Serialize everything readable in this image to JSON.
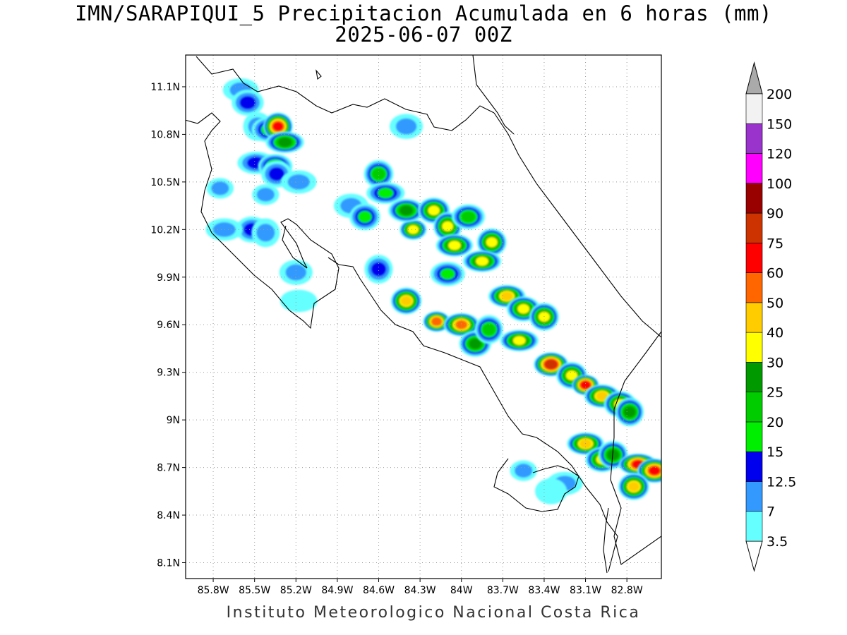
{
  "title_line1": "IMN/SARAPIQUI_5 Precipitacion Acumulada en 6 horas (mm)",
  "title_line2": "2025-06-07 00Z",
  "credit": "Instituto Meteorologico Nacional Costa Rica",
  "map": {
    "lon_min": -86.0,
    "lon_max": -82.55,
    "lat_min": 8.0,
    "lat_max": 11.3,
    "lon_ticks": [
      {
        "value": -85.8,
        "label": "85.8W"
      },
      {
        "value": -85.5,
        "label": "85.5W"
      },
      {
        "value": -85.2,
        "label": "85.2W"
      },
      {
        "value": -84.9,
        "label": "84.9W"
      },
      {
        "value": -84.6,
        "label": "84.6W"
      },
      {
        "value": -84.3,
        "label": "84.3W"
      },
      {
        "value": -84.0,
        "label": "84W"
      },
      {
        "value": -83.7,
        "label": "83.7W"
      },
      {
        "value": -83.4,
        "label": "83.4W"
      },
      {
        "value": -83.1,
        "label": "83.1W"
      },
      {
        "value": -82.8,
        "label": "82.8W"
      }
    ],
    "lat_ticks": [
      {
        "value": 11.1,
        "label": "11.1N"
      },
      {
        "value": 10.8,
        "label": "10.8N"
      },
      {
        "value": 10.5,
        "label": "10.5N"
      },
      {
        "value": 10.2,
        "label": "10.2N"
      },
      {
        "value": 9.9,
        "label": "9.9N"
      },
      {
        "value": 9.6,
        "label": "9.6N"
      },
      {
        "value": 9.3,
        "label": "9.3N"
      },
      {
        "value": 9.0,
        "label": "9N"
      },
      {
        "value": 8.7,
        "label": "8.7N"
      },
      {
        "value": 8.4,
        "label": "8.4N"
      },
      {
        "value": 8.1,
        "label": "8.1N"
      }
    ],
    "grid": true
  },
  "colorbar": {
    "levels": [
      "3.5",
      "7",
      "12.5",
      "15",
      "20",
      "25",
      "30",
      "40",
      "50",
      "60",
      "75",
      "90",
      "100",
      "120",
      "150",
      "200"
    ],
    "colors": [
      "#66ffff",
      "#3399ff",
      "#0000ee",
      "#00ee00",
      "#00cc00",
      "#009900",
      "#ffff00",
      "#ffcc00",
      "#ff6600",
      "#ff0000",
      "#cc3300",
      "#990000",
      "#ff00ff",
      "#9933cc",
      "#f2f2f2"
    ],
    "over_color": "#aaaaaa",
    "under_color": "#ffffff"
  },
  "chart_data": {
    "type": "heatmap",
    "units": "mm",
    "note_fields": "cells: [lon, lat, precipitation_mm]",
    "cells": [
      [
        -85.75,
        10.46,
        12
      ],
      [
        -85.6,
        11.08,
        7
      ],
      [
        -85.55,
        11.0,
        14
      ],
      [
        -85.48,
        10.85,
        10
      ],
      [
        -85.49,
        10.62,
        14
      ],
      [
        -85.4,
        10.83,
        18
      ],
      [
        -85.33,
        10.85,
        60
      ],
      [
        -85.28,
        10.75,
        25
      ],
      [
        -85.35,
        10.6,
        22
      ],
      [
        -85.34,
        10.55,
        14
      ],
      [
        -85.42,
        10.42,
        9
      ],
      [
        -85.18,
        10.5,
        12
      ],
      [
        -85.52,
        10.2,
        14
      ],
      [
        -85.42,
        10.18,
        12
      ],
      [
        -85.72,
        10.2,
        7
      ],
      [
        -85.2,
        9.93,
        12
      ],
      [
        -84.6,
        10.55,
        22
      ],
      [
        -84.55,
        10.43,
        15
      ],
      [
        -84.8,
        10.35,
        10
      ],
      [
        -84.7,
        10.28,
        15
      ],
      [
        -84.35,
        10.2,
        35
      ],
      [
        -84.4,
        10.32,
        25
      ],
      [
        -84.2,
        10.32,
        30
      ],
      [
        -84.1,
        10.22,
        35
      ],
      [
        -84.05,
        10.1,
        30
      ],
      [
        -83.95,
        10.28,
        22
      ],
      [
        -83.78,
        10.12,
        30
      ],
      [
        -83.85,
        10.0,
        38
      ],
      [
        -84.1,
        9.92,
        15
      ],
      [
        -84.4,
        9.75,
        42
      ],
      [
        -84.18,
        9.62,
        55
      ],
      [
        -84.0,
        9.6,
        50
      ],
      [
        -83.9,
        9.48,
        25
      ],
      [
        -83.8,
        9.57,
        20
      ],
      [
        -83.67,
        9.78,
        40
      ],
      [
        -83.55,
        9.7,
        38
      ],
      [
        -83.4,
        9.65,
        35
      ],
      [
        -83.58,
        9.5,
        30
      ],
      [
        -83.35,
        9.35,
        75
      ],
      [
        -83.2,
        9.28,
        30
      ],
      [
        -83.1,
        9.22,
        70
      ],
      [
        -82.98,
        9.15,
        40
      ],
      [
        -82.85,
        9.1,
        32
      ],
      [
        -82.78,
        9.05,
        25
      ],
      [
        -83.1,
        8.85,
        48
      ],
      [
        -82.98,
        8.75,
        35
      ],
      [
        -82.9,
        8.78,
        25
      ],
      [
        -82.72,
        8.72,
        60
      ],
      [
        -82.6,
        8.68,
        65
      ],
      [
        -82.75,
        8.58,
        40
      ],
      [
        -83.55,
        8.68,
        12
      ],
      [
        -83.25,
        8.6,
        10
      ],
      [
        -83.35,
        8.55,
        5
      ],
      [
        -84.6,
        9.95,
        14
      ],
      [
        -85.18,
        9.75,
        5
      ],
      [
        -84.4,
        10.85,
        10
      ]
    ]
  }
}
